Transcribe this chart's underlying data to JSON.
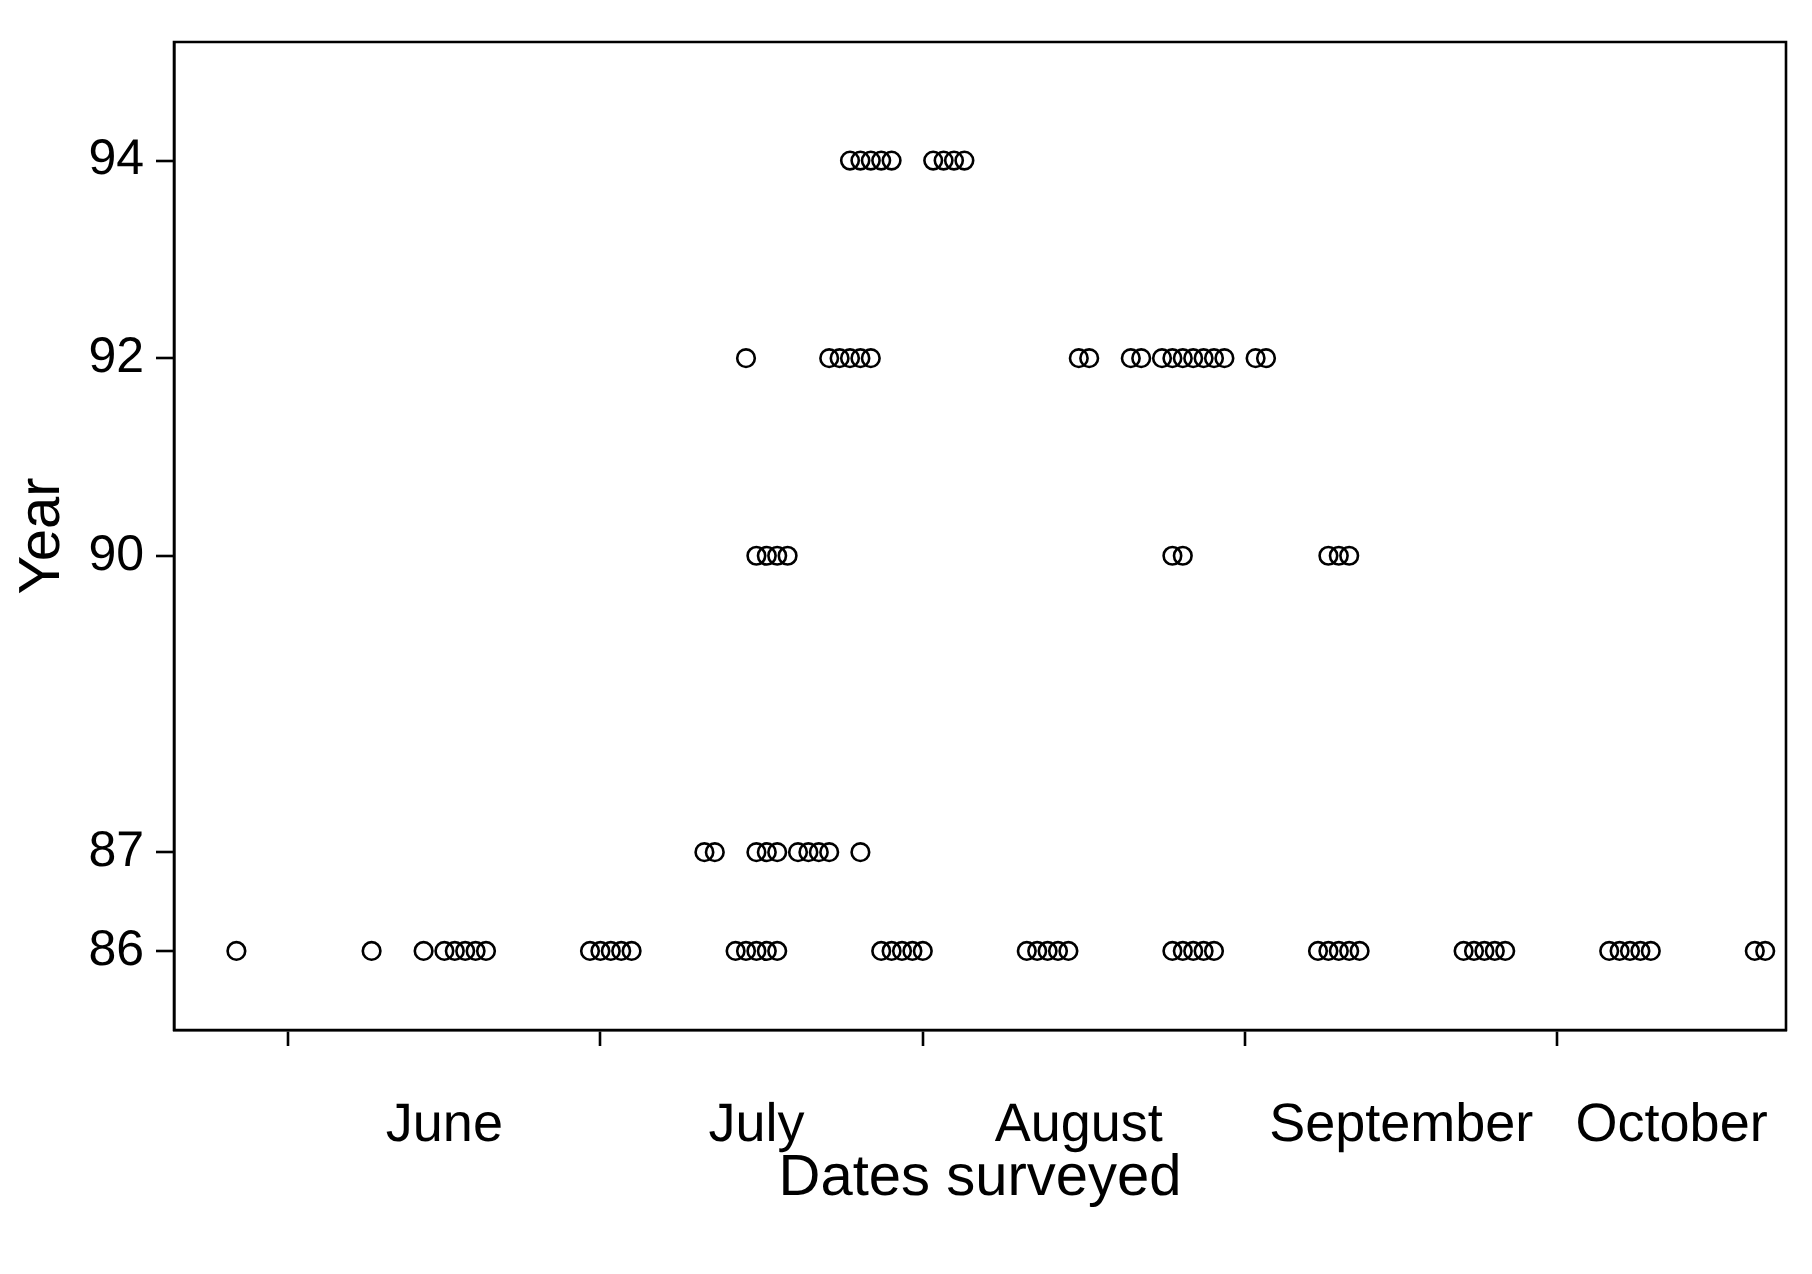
{
  "chart_data": {
    "type": "scatter",
    "xlabel": "Dates surveyed",
    "ylabel": "Year",
    "ylim": [
      85.2,
      95.2
    ],
    "yticks": [
      86,
      87,
      90,
      92,
      94
    ],
    "xlim": [
      "--05-21",
      "--10-23"
    ],
    "xticks": [
      {
        "value": "--06-01",
        "label": null
      },
      {
        "value": "--06-16",
        "label": "June"
      },
      {
        "value": "--07-01",
        "label": null
      },
      {
        "value": "--07-16",
        "label": "July"
      },
      {
        "value": "--08-01",
        "label": null
      },
      {
        "value": "--08-16",
        "label": "August"
      },
      {
        "value": "--09-01",
        "label": null
      },
      {
        "value": "--09-16",
        "label": "September"
      },
      {
        "value": "--10-01",
        "label": null
      },
      {
        "value": "--10-12",
        "label": "October"
      }
    ],
    "color": "#000000",
    "marker": "circle",
    "x": [
      "--05-27",
      "--06-09",
      "--06-14",
      "--06-16",
      "--06-17",
      "--06-18",
      "--06-19",
      "--06-20",
      "--06-30",
      "--07-01",
      "--07-02",
      "--07-03",
      "--07-04",
      "--07-14",
      "--07-15",
      "--07-16",
      "--07-17",
      "--07-18",
      "--07-28",
      "--07-29",
      "--07-30",
      "--07-31",
      "--08-01",
      "--08-11",
      "--08-12",
      "--08-13",
      "--08-14",
      "--08-15",
      "--08-25",
      "--08-26",
      "--08-27",
      "--08-28",
      "--08-29",
      "--09-08",
      "--09-09",
      "--09-10",
      "--09-11",
      "--09-12",
      "--09-22",
      "--09-23",
      "--09-24",
      "--09-25",
      "--09-26",
      "--10-06",
      "--10-07",
      "--10-08",
      "--10-09",
      "--10-10",
      "--10-20",
      "--10-21",
      "--07-11",
      "--07-12",
      "--07-16",
      "--07-17",
      "--07-18",
      "--07-20",
      "--07-21",
      "--07-22",
      "--07-23",
      "--07-26",
      "--07-16",
      "--07-17",
      "--07-18",
      "--07-19",
      "--08-25",
      "--08-26",
      "--09-09",
      "--09-10",
      "--09-11",
      "--07-15",
      "--07-23",
      "--07-24",
      "--07-25",
      "--07-26",
      "--07-27",
      "--08-16",
      "--08-17",
      "--08-21",
      "--08-22",
      "--08-24",
      "--08-25",
      "--08-26",
      "--08-27",
      "--08-28",
      "--08-29",
      "--08-30",
      "--09-02",
      "--09-03",
      "--07-25",
      "--07-26",
      "--07-27",
      "--07-28",
      "--07-29",
      "--08-02",
      "--08-03",
      "--08-04",
      "--08-05"
    ],
    "values": [
      86,
      86,
      86,
      86,
      86,
      86,
      86,
      86,
      86,
      86,
      86,
      86,
      86,
      86,
      86,
      86,
      86,
      86,
      86,
      86,
      86,
      86,
      86,
      86,
      86,
      86,
      86,
      86,
      86,
      86,
      86,
      86,
      86,
      86,
      86,
      86,
      86,
      86,
      86,
      86,
      86,
      86,
      86,
      86,
      86,
      86,
      86,
      86,
      86,
      86,
      87,
      87,
      87,
      87,
      87,
      87,
      87,
      87,
      87,
      87,
      90,
      90,
      90,
      90,
      90,
      90,
      90,
      90,
      90,
      92,
      92,
      92,
      92,
      92,
      92,
      92,
      92,
      92,
      92,
      92,
      92,
      92,
      92,
      92,
      92,
      92,
      92,
      92,
      94,
      94,
      94,
      94,
      94,
      94,
      94,
      94,
      94
    ]
  }
}
